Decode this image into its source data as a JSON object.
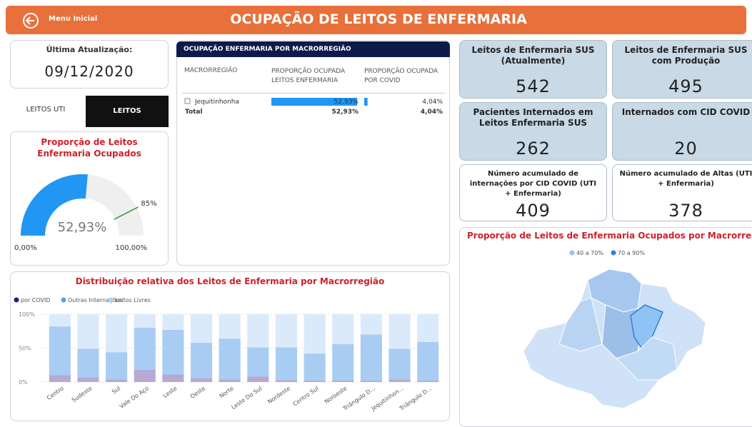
{
  "header": {
    "back": "Menu Inicial",
    "title": "OCUPAÇÃO DE LEITOS DE ENFERMARIA"
  },
  "update": {
    "label": "Última Atualização:",
    "date": "09/12/2020"
  },
  "tabs": [
    "LEITOS UTI",
    "LEITOS ENFERMARIA"
  ],
  "table": {
    "title": "OCUPAÇÃO ENFERMARIA POR MACRORREGIÃO",
    "columns": [
      "MACRORREGIÃO",
      "PROPORÇÃO OCUPADA LEITOS ENFERMARIA",
      "PROPORÇÃO OCUPADA POR COVID"
    ],
    "rows": [
      {
        "name": "Jequitinhonha",
        "ocupada": 52.93,
        "ocupada_label": "52,93%",
        "covid": 4.04,
        "covid_label": "4,04%"
      },
      {
        "name": "Total",
        "ocupada": 52.93,
        "ocupada_label": "52,93%",
        "covid": 4.04,
        "covid_label": "4,04%"
      }
    ]
  },
  "cards": [
    {
      "title": "Leitos de Enfermaria SUS (Atualmente)",
      "value": 542
    },
    {
      "title": "Leitos de Enfermaria SUS com Produção",
      "value": 495
    },
    {
      "title": "Pacientes Internados em Leitos Enfermaria SUS",
      "value": 262
    },
    {
      "title": "Internados com CID COVID",
      "value": 20
    },
    {
      "title": "Número acumulado de internações por CID COVID (UTI + Enfermaria)",
      "value": 409
    },
    {
      "title": "Número acumulado de Altas (UTI + Enfermaria)",
      "value": 378
    }
  ],
  "map": {
    "title": "Proporção de Leitos de Enfermaria Ocupados por Macrorregião",
    "legend": [
      {
        "name": "40 a 70%",
        "color": "#8fc3f5"
      },
      {
        "name": "70 a 90%",
        "color": "#2f7fd6"
      }
    ]
  },
  "chart_data": [
    {
      "type": "gauge",
      "title": "Proporção de Leitos Enfermaria Ocupados",
      "value": 52.93,
      "value_label": "52,93%",
      "min": 0,
      "min_label": "0,00%",
      "max": 100,
      "max_label": "100,00%",
      "target": 85,
      "target_label": "85%",
      "color": "#2196f3",
      "track_color": "#efefef",
      "target_color": "#2e9e3a"
    },
    {
      "type": "stacked_bar",
      "title": "Distribuição relativa dos Leitos de Enfermaria por Macrorregião",
      "categories": [
        "Centro",
        "Sudeste",
        "Sul",
        "Vale Do Aço",
        "Leste",
        "Oeste",
        "Norte",
        "Leste Do Sul",
        "Nordeste",
        "Centro Sul",
        "Noroeste",
        "Triângulo D...",
        "Jequitinhon...",
        "Triângulo D..."
      ],
      "series": [
        {
          "name": "por COVID",
          "color": "#b7a9d4",
          "values": [
            10,
            7,
            4,
            18,
            11,
            6,
            4,
            8,
            3,
            2,
            2,
            2,
            4,
            2
          ]
        },
        {
          "name": "Outras Internações",
          "color": "#a9cdf2",
          "values": [
            72,
            42,
            40,
            62,
            66,
            52,
            60,
            43,
            48,
            40,
            54,
            68,
            45,
            57
          ]
        },
        {
          "name": "Leitos Livres",
          "color": "#dbeafb",
          "values": [
            18,
            51,
            56,
            20,
            23,
            42,
            36,
            49,
            49,
            58,
            44,
            30,
            51,
            41
          ]
        }
      ],
      "ylim": [
        0,
        100
      ],
      "yticks": [
        {
          "value": 0,
          "label": "0%"
        },
        {
          "value": 50,
          "label": "50%"
        },
        {
          "value": 100,
          "label": "100%"
        }
      ],
      "grid": true
    }
  ]
}
